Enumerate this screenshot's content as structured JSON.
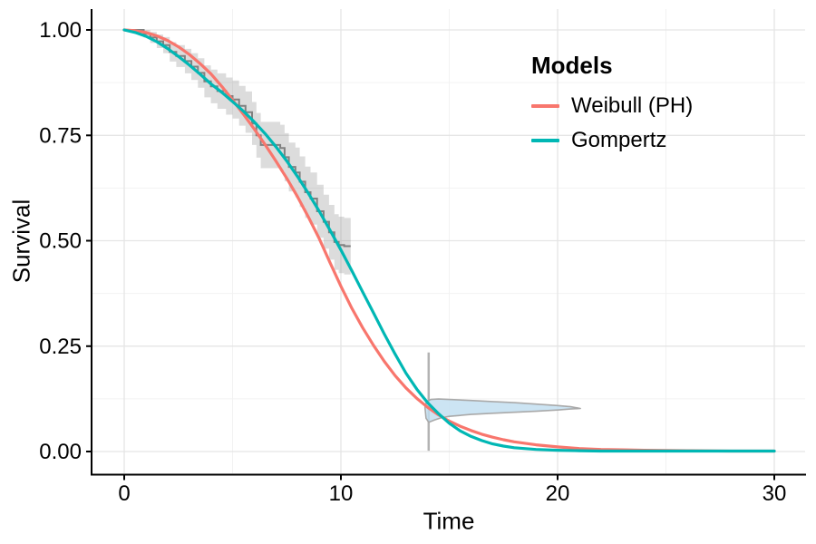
{
  "axes": {
    "x": {
      "label": "Time",
      "range": [
        0,
        30
      ],
      "tick_values": [
        0,
        10,
        20,
        30
      ],
      "tick_labels": [
        "0",
        "10",
        "20",
        "30"
      ],
      "minor_ticks": [
        5,
        15,
        25
      ]
    },
    "y": {
      "label": "Survival",
      "range": [
        0,
        1
      ],
      "tick_values": [
        0,
        0.25,
        0.5,
        0.75,
        1
      ],
      "tick_labels": [
        "0.00",
        "0.25",
        "0.50",
        "0.75",
        "1.00"
      ],
      "minor_ticks": [
        0.125,
        0.375,
        0.625,
        0.875
      ]
    }
  },
  "legend": {
    "title": "Models",
    "position": "inside top-right",
    "items": [
      {
        "label": "Weibull (PH)",
        "color": "#F8766D"
      },
      {
        "label": "Gompertz",
        "color": "#00B7B4"
      }
    ]
  },
  "style": {
    "background": "#FFFFFF",
    "grid_major": "#E5E5E5",
    "grid_minor": "#F2F2F2",
    "axis_color": "#000000",
    "text_color": "#000000",
    "km_line_color": "#808080",
    "km_band_color": "#808080",
    "km_band_opacity": 0.28,
    "violin_fill": "#BFDDF0",
    "violin_opacity": 0.8,
    "violin_stroke": "#A9A9A9",
    "vline_color": "#B3B3B3"
  },
  "chart_data": {
    "type": "line",
    "title": "",
    "xlabel": "Time",
    "ylabel": "Survival",
    "xlim": [
      0,
      30
    ],
    "ylim": [
      0,
      1
    ],
    "grid": "major+minor",
    "legend_position": "inside top-right",
    "series": [
      {
        "name": "Weibull (PH)",
        "color": "#F8766D",
        "points": [
          [
            0,
            1
          ],
          [
            0.5,
            0.998
          ],
          [
            1,
            0.994
          ],
          [
            1.5,
            0.986
          ],
          [
            2,
            0.975
          ],
          [
            2.5,
            0.96
          ],
          [
            3,
            0.942
          ],
          [
            3.5,
            0.92
          ],
          [
            4,
            0.896
          ],
          [
            4.5,
            0.866
          ],
          [
            5,
            0.834
          ],
          [
            5.5,
            0.8
          ],
          [
            6,
            0.765
          ],
          [
            6.5,
            0.728
          ],
          [
            7,
            0.689
          ],
          [
            7.5,
            0.648
          ],
          [
            8,
            0.604
          ],
          [
            8.5,
            0.556
          ],
          [
            9,
            0.505
          ],
          [
            9.5,
            0.448
          ],
          [
            10,
            0.392
          ],
          [
            10.5,
            0.34
          ],
          [
            11,
            0.294
          ],
          [
            11.5,
            0.252
          ],
          [
            12,
            0.214
          ],
          [
            12.5,
            0.18
          ],
          [
            13,
            0.151
          ],
          [
            13.5,
            0.126
          ],
          [
            14,
            0.105
          ],
          [
            14.5,
            0.087
          ],
          [
            15,
            0.072
          ],
          [
            15.5,
            0.06
          ],
          [
            16,
            0.05
          ],
          [
            16.5,
            0.041
          ],
          [
            17,
            0.034
          ],
          [
            17.5,
            0.028
          ],
          [
            18,
            0.023
          ],
          [
            19,
            0.016
          ],
          [
            20,
            0.011
          ],
          [
            21,
            0.007
          ],
          [
            22,
            0.005
          ],
          [
            23,
            0.004
          ],
          [
            24,
            0.003
          ],
          [
            26,
            0.002
          ],
          [
            28,
            0.001
          ],
          [
            30,
            0.001
          ]
        ]
      },
      {
        "name": "Gompertz",
        "color": "#00B7B4",
        "points": [
          [
            0,
            1
          ],
          [
            0.5,
            0.994
          ],
          [
            1,
            0.985
          ],
          [
            1.5,
            0.972
          ],
          [
            2,
            0.956
          ],
          [
            2.5,
            0.937
          ],
          [
            3,
            0.917
          ],
          [
            3.5,
            0.895
          ],
          [
            4,
            0.872
          ],
          [
            4.5,
            0.852
          ],
          [
            5,
            0.83
          ],
          [
            5.5,
            0.807
          ],
          [
            6,
            0.782
          ],
          [
            6.5,
            0.754
          ],
          [
            7,
            0.723
          ],
          [
            7.5,
            0.689
          ],
          [
            8,
            0.652
          ],
          [
            8.5,
            0.612
          ],
          [
            9,
            0.57
          ],
          [
            9.5,
            0.525
          ],
          [
            10,
            0.478
          ],
          [
            10.5,
            0.429
          ],
          [
            11,
            0.379
          ],
          [
            11.5,
            0.329
          ],
          [
            12,
            0.279
          ],
          [
            12.5,
            0.231
          ],
          [
            13,
            0.186
          ],
          [
            13.5,
            0.148
          ],
          [
            14,
            0.116
          ],
          [
            14.5,
            0.09
          ],
          [
            15,
            0.067
          ],
          [
            15.5,
            0.049
          ],
          [
            16,
            0.036
          ],
          [
            16.5,
            0.026
          ],
          [
            17,
            0.018
          ],
          [
            17.5,
            0.013
          ],
          [
            18,
            0.009
          ],
          [
            19,
            0.005
          ],
          [
            20,
            0.003
          ],
          [
            21,
            0.002
          ],
          [
            22,
            0.001
          ],
          [
            24,
            0.001
          ],
          [
            26,
            0.001
          ],
          [
            28,
            0.001
          ],
          [
            30,
            0.001
          ]
        ]
      }
    ],
    "kaplan_meier": {
      "name": "Kaplan-Meier estimate with confidence band",
      "end_time": 10.45,
      "steps": [
        [
          0,
          1,
          0
        ],
        [
          0.9,
          0.991,
          0.009
        ],
        [
          1.2,
          0.982,
          0.013
        ],
        [
          1.5,
          0.973,
          0.016
        ],
        [
          1.8,
          0.964,
          0.019
        ],
        [
          2.1,
          0.948,
          0.023
        ],
        [
          2.4,
          0.938,
          0.026
        ],
        [
          2.8,
          0.926,
          0.029
        ],
        [
          3.1,
          0.913,
          0.032
        ],
        [
          3.4,
          0.898,
          0.035
        ],
        [
          3.7,
          0.878,
          0.038
        ],
        [
          4,
          0.866,
          0.04
        ],
        [
          4.3,
          0.855,
          0.042
        ],
        [
          4.7,
          0.843,
          0.044
        ],
        [
          5,
          0.835,
          0.045
        ],
        [
          5.3,
          0.82,
          0.047
        ],
        [
          5.6,
          0.805,
          0.049
        ],
        [
          5.9,
          0.778,
          0.051
        ],
        [
          6.1,
          0.75,
          0.053
        ],
        [
          6.3,
          0.727,
          0.055
        ],
        [
          7.2,
          0.72,
          0.055
        ],
        [
          7.4,
          0.698,
          0.057
        ],
        [
          7.6,
          0.675,
          0.058
        ],
        [
          7.9,
          0.662,
          0.059
        ],
        [
          8.1,
          0.64,
          0.06
        ],
        [
          8.35,
          0.615,
          0.061
        ],
        [
          8.6,
          0.6,
          0.062
        ],
        [
          8.9,
          0.57,
          0.063
        ],
        [
          9.2,
          0.545,
          0.064
        ],
        [
          9.45,
          0.52,
          0.065
        ],
        [
          9.7,
          0.497,
          0.066
        ],
        [
          9.9,
          0.49,
          0.067
        ],
        [
          10.15,
          0.487,
          0.067
        ]
      ]
    },
    "annotations": {
      "vline": {
        "time": 14.05,
        "s_from": 0.002,
        "s_to": 0.235
      },
      "violin": {
        "center_time": 14,
        "center_survival": 0.105,
        "outline": [
          [
            13.88,
            0.105
          ],
          [
            13.95,
            0.118
          ],
          [
            14.15,
            0.1235
          ],
          [
            14.5,
            0.1245
          ],
          [
            15,
            0.1235
          ],
          [
            16,
            0.121
          ],
          [
            17,
            0.1185
          ],
          [
            18,
            0.116
          ],
          [
            19,
            0.1125
          ],
          [
            20,
            0.109
          ],
          [
            20.6,
            0.1062
          ],
          [
            21.05,
            0.1022
          ],
          [
            20.6,
            0.1008
          ],
          [
            20,
            0.0985
          ],
          [
            19,
            0.0955
          ],
          [
            18,
            0.0932
          ],
          [
            17,
            0.0907
          ],
          [
            16,
            0.088
          ],
          [
            15,
            0.0835
          ],
          [
            14.6,
            0.0795
          ],
          [
            14.3,
            0.0745
          ],
          [
            14.05,
            0.0695
          ],
          [
            13.93,
            0.079
          ]
        ]
      }
    }
  }
}
